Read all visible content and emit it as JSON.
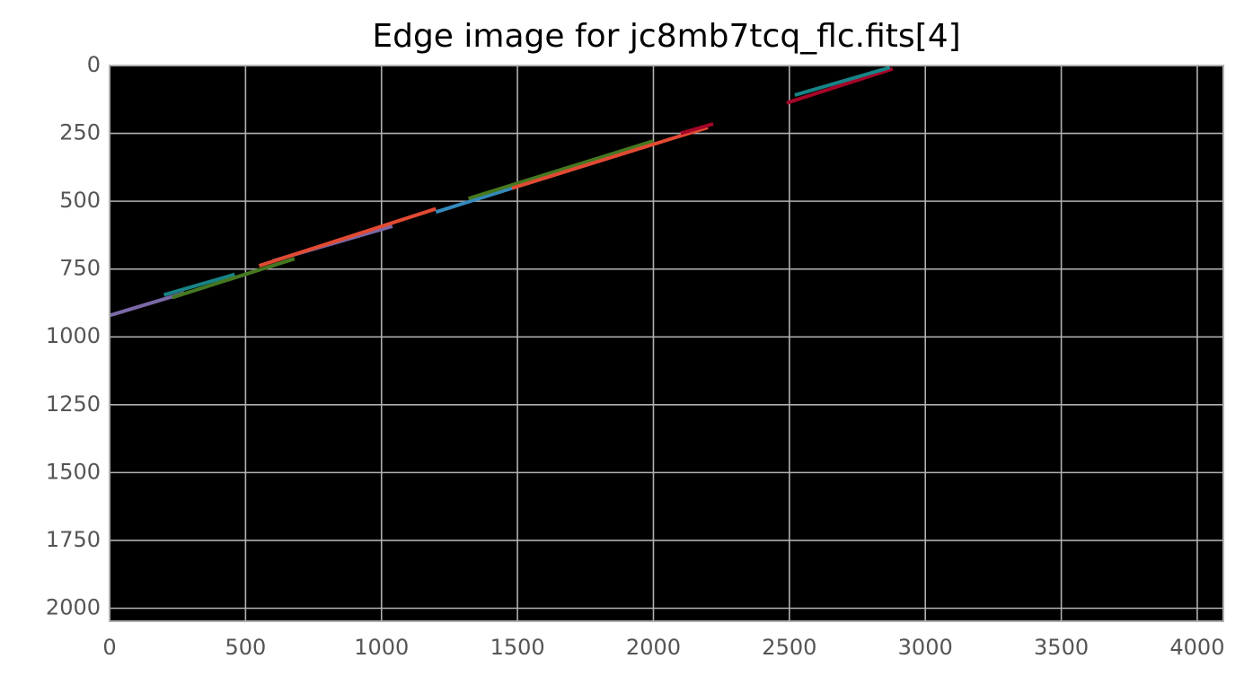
{
  "chart_data": {
    "type": "line",
    "title": "Edge image for jc8mb7tcq_flc.fits[4]",
    "background": "#000000",
    "grid": true,
    "y_inverted": true,
    "xlim": [
      0,
      4096
    ],
    "ylim": [
      2048,
      0
    ],
    "xticks": [
      0,
      500,
      1000,
      1500,
      2000,
      2500,
      3000,
      3500,
      4000
    ],
    "yticks": [
      0,
      250,
      500,
      750,
      1000,
      1250,
      1500,
      1750,
      2000
    ],
    "series": [
      {
        "color": "#7A68A6",
        "x": [
          0,
          275
        ],
        "values": [
          921,
          838
        ]
      },
      {
        "color": "#188487",
        "x": [
          200,
          460
        ],
        "values": [
          845,
          770
        ]
      },
      {
        "color": "#467821",
        "x": [
          230,
          680
        ],
        "values": [
          855,
          712
        ]
      },
      {
        "color": "#7A68A6",
        "x": [
          600,
          1040
        ],
        "values": [
          720,
          592
        ]
      },
      {
        "color": "#E24A33",
        "x": [
          550,
          1200
        ],
        "values": [
          738,
          528
        ]
      },
      {
        "color": "#348ABD",
        "x": [
          1200,
          1900
        ],
        "values": [
          540,
          320
        ]
      },
      {
        "color": "#467821",
        "x": [
          1320,
          2000
        ],
        "values": [
          490,
          278
        ]
      },
      {
        "color": "#E24A33",
        "x": [
          1480,
          2200
        ],
        "values": [
          452,
          228
        ]
      },
      {
        "color": "#A60628",
        "x": [
          2100,
          2220
        ],
        "values": [
          250,
          215
        ]
      },
      {
        "color": "#A60628",
        "x": [
          2490,
          2880
        ],
        "values": [
          138,
          12
        ]
      },
      {
        "color": "#188487",
        "x": [
          2520,
          2870
        ],
        "values": [
          109,
          7
        ]
      }
    ]
  }
}
